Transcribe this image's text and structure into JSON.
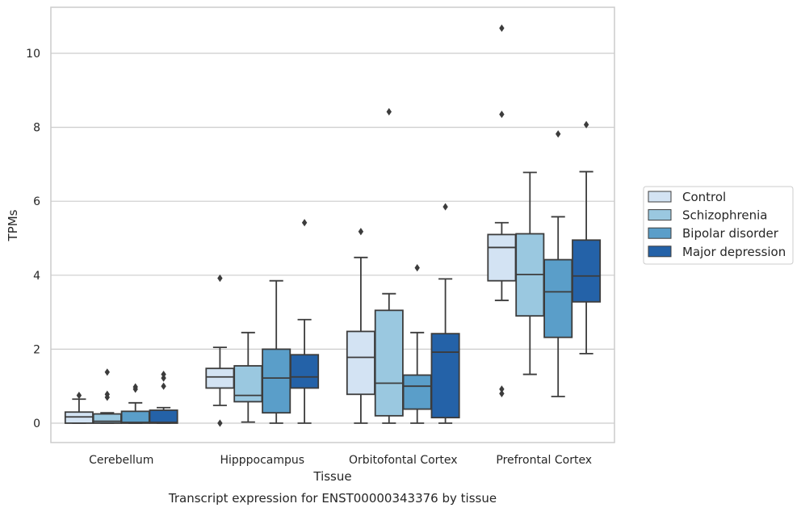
{
  "chart_data": {
    "type": "box",
    "title": "Transcript expression for ENST00000343376 by tissue",
    "xlabel": "Tissue",
    "ylabel": "TPMs",
    "ylim": [
      -0.5,
      11.25
    ],
    "yticks": [
      0,
      2,
      4,
      6,
      8,
      10
    ],
    "grid": true,
    "legend_position": "right",
    "categories": [
      "Cerebellum",
      "Hipppocampus",
      "Orbitofontal Cortex",
      "Prefrontal Cortex"
    ],
    "series": [
      {
        "name": "Control",
        "color": "#d3e3f3",
        "boxes": [
          {
            "whislo": 0.0,
            "q1": 0.0,
            "med": 0.17,
            "q3": 0.3,
            "whishi": 0.65,
            "fliers": [
              0.75
            ]
          },
          {
            "whislo": 0.48,
            "q1": 0.95,
            "med": 1.25,
            "q3": 1.48,
            "whishi": 2.05,
            "fliers": [
              0.0,
              3.92
            ]
          },
          {
            "whislo": 0.0,
            "q1": 0.78,
            "med": 1.78,
            "q3": 2.48,
            "whishi": 4.48,
            "fliers": [
              5.18
            ]
          },
          {
            "whislo": 3.32,
            "q1": 3.85,
            "med": 4.75,
            "q3": 5.1,
            "whishi": 5.42,
            "fliers": [
              0.8,
              0.92,
              8.35,
              10.68
            ]
          }
        ]
      },
      {
        "name": "Schizophrenia",
        "color": "#9ac8e0",
        "boxes": [
          {
            "whislo": 0.0,
            "q1": 0.0,
            "med": 0.05,
            "q3": 0.25,
            "whishi": 0.28,
            "fliers": [
              0.7,
              0.78,
              1.38
            ]
          },
          {
            "whislo": 0.03,
            "q1": 0.58,
            "med": 0.75,
            "q3": 1.55,
            "whishi": 2.45,
            "fliers": []
          },
          {
            "whislo": 0.0,
            "q1": 0.2,
            "med": 1.08,
            "q3": 3.05,
            "whishi": 3.5,
            "fliers": [
              8.42
            ]
          },
          {
            "whislo": 1.32,
            "q1": 2.9,
            "med": 4.02,
            "q3": 5.12,
            "whishi": 6.78,
            "fliers": []
          }
        ]
      },
      {
        "name": "Bipolar disorder",
        "color": "#5a9ec9",
        "boxes": [
          {
            "whislo": 0.0,
            "q1": 0.0,
            "med": 0.02,
            "q3": 0.32,
            "whishi": 0.55,
            "fliers": [
              0.92,
              0.98
            ]
          },
          {
            "whislo": 0.0,
            "q1": 0.28,
            "med": 1.22,
            "q3": 2.0,
            "whishi": 3.85,
            "fliers": []
          },
          {
            "whislo": 0.0,
            "q1": 0.38,
            "med": 1.0,
            "q3": 1.3,
            "whishi": 2.45,
            "fliers": [
              4.2
            ]
          },
          {
            "whislo": 0.72,
            "q1": 2.32,
            "med": 3.55,
            "q3": 4.42,
            "whishi": 5.58,
            "fliers": [
              7.82
            ]
          }
        ]
      },
      {
        "name": "Major depression",
        "color": "#2462a8",
        "boxes": [
          {
            "whislo": 0.0,
            "q1": 0.0,
            "med": 0.02,
            "q3": 0.35,
            "whishi": 0.42,
            "fliers": [
              1.0,
              1.22,
              1.32
            ]
          },
          {
            "whislo": 0.0,
            "q1": 0.95,
            "med": 1.25,
            "q3": 1.85,
            "whishi": 2.8,
            "fliers": [
              5.42
            ]
          },
          {
            "whislo": 0.0,
            "q1": 0.15,
            "med": 1.92,
            "q3": 2.42,
            "whishi": 3.9,
            "fliers": [
              5.85
            ]
          },
          {
            "whislo": 1.88,
            "q1": 3.28,
            "med": 3.98,
            "q3": 4.95,
            "whishi": 6.8,
            "fliers": [
              8.07
            ]
          }
        ]
      }
    ]
  }
}
